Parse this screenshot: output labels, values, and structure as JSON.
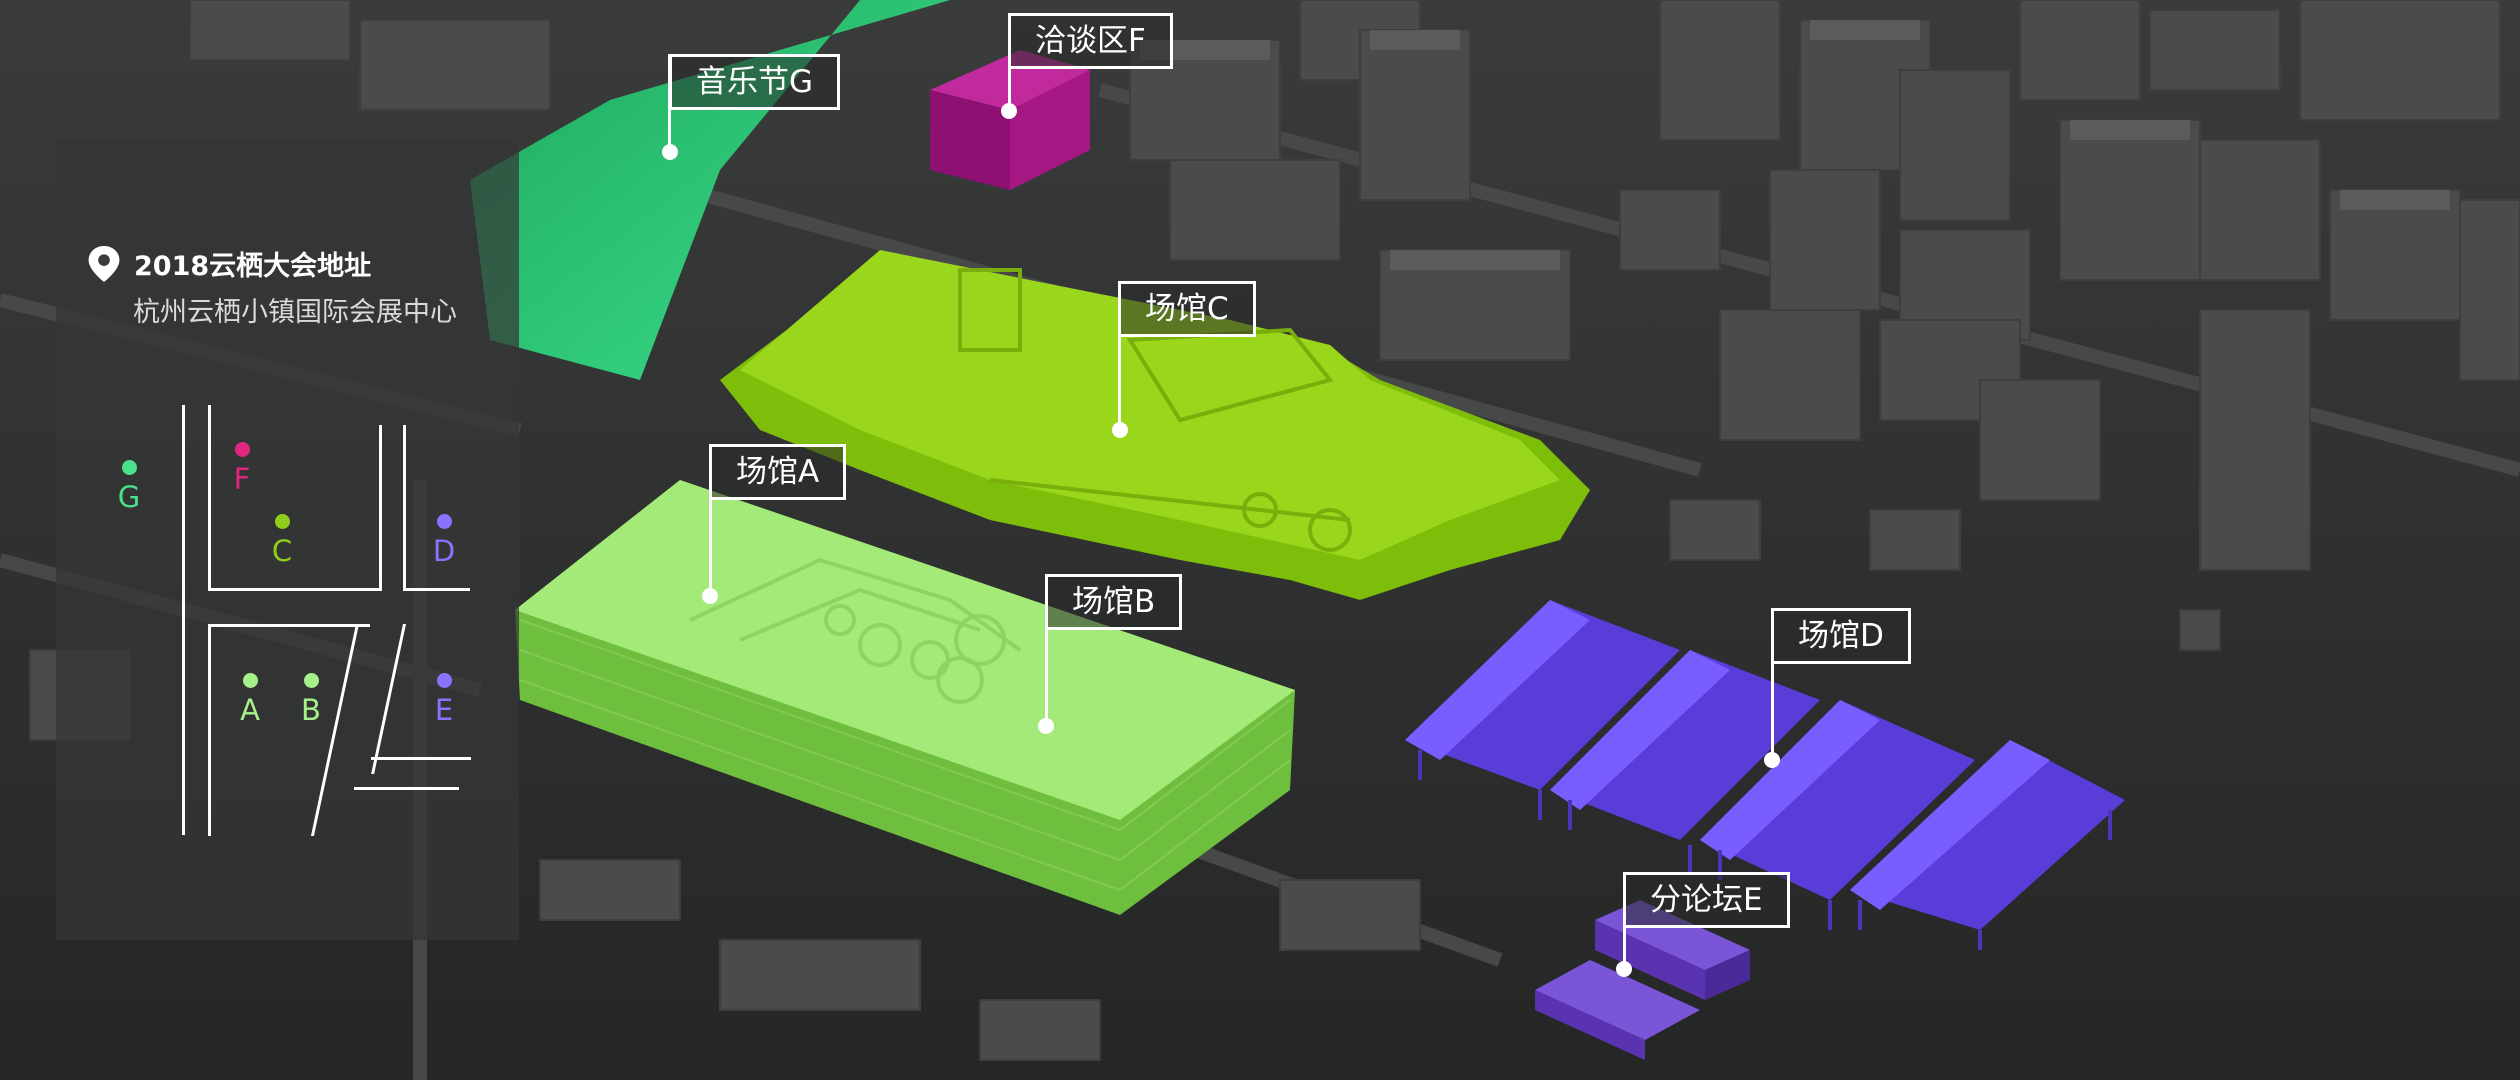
{
  "legend": {
    "title": "2018云栖大会地址",
    "address": "杭州云栖小镇国际会展中心",
    "markers": [
      {
        "letter": "G",
        "color": "#4be08a"
      },
      {
        "letter": "F",
        "color": "#e0267f"
      },
      {
        "letter": "C",
        "color": "#8fcf1a"
      },
      {
        "letter": "D",
        "color": "#8a72ff"
      },
      {
        "letter": "A",
        "color": "#a6f08a"
      },
      {
        "letter": "B",
        "color": "#a6f08a"
      },
      {
        "letter": "E",
        "color": "#8a72ff"
      }
    ]
  },
  "venues": {
    "G": {
      "label": "音乐节G",
      "color": "#2fd37a"
    },
    "F": {
      "label": "洽谈区F",
      "color": "#a51884"
    },
    "C": {
      "label": "场馆C",
      "color": "#8ccc10"
    },
    "A": {
      "label": "场馆A",
      "color": "#94e066"
    },
    "B": {
      "label": "场馆B",
      "color": "#94e066"
    },
    "D": {
      "label": "场馆D",
      "color": "#6a4ce6"
    },
    "E": {
      "label": "分论坛E",
      "color": "#6c44c4"
    }
  }
}
